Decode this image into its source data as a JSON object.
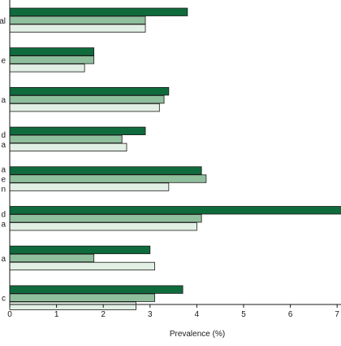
{
  "chart_data": {
    "type": "bar",
    "orientation": "horizontal",
    "categories": [
      {
        "lines": [
          "al"
        ]
      },
      {
        "lines": [
          "e"
        ]
      },
      {
        "lines": [
          "a"
        ]
      },
      {
        "lines": [
          "d",
          "a"
        ]
      },
      {
        "lines": [
          "a",
          "e",
          "n"
        ]
      },
      {
        "lines": [
          "d",
          "a"
        ]
      },
      {
        "lines": [
          "a"
        ]
      },
      {
        "lines": [
          "c"
        ]
      }
    ],
    "series": [
      {
        "color": "#0f6b3c",
        "values": [
          3.8,
          1.8,
          3.4,
          2.9,
          4.1,
          7.3,
          3.0,
          3.7
        ]
      },
      {
        "color": "#8fbf9c",
        "values": [
          2.9,
          1.8,
          3.3,
          2.4,
          4.2,
          4.1,
          1.8,
          3.1
        ]
      },
      {
        "color": "#e2efe4",
        "values": [
          2.9,
          1.6,
          3.2,
          2.5,
          3.4,
          4.0,
          3.1,
          2.7
        ]
      }
    ],
    "xlabel": "Prevalence (%)",
    "ylabel": "",
    "xlim": [
      0,
      7
    ],
    "xticks": [
      0,
      1,
      2,
      3,
      4,
      5,
      6,
      7
    ],
    "grid": false,
    "legend": "none"
  }
}
